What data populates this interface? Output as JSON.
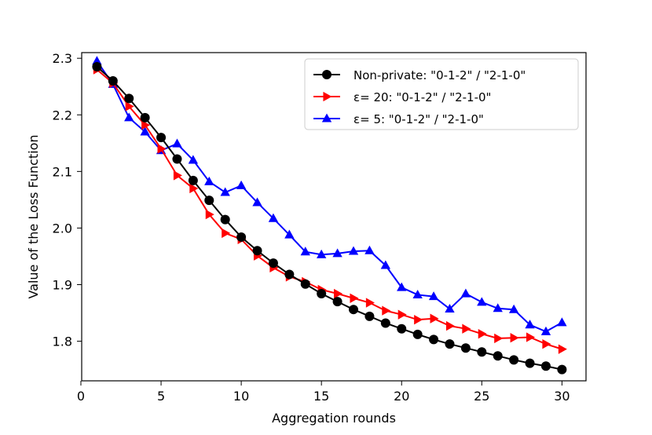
{
  "chart_data": {
    "type": "line",
    "title": "",
    "xlabel": "Aggregation rounds",
    "ylabel": "Value of the Loss Function",
    "xlim": [
      0.05,
      31.5
    ],
    "ylim": [
      1.73,
      2.31
    ],
    "xticks": [
      0,
      5,
      10,
      15,
      20,
      25,
      30
    ],
    "yticks": [
      1.8,
      1.9,
      2.0,
      2.1,
      2.2,
      2.3
    ],
    "ytick_labels": [
      "1.8",
      "1.9",
      "2.0",
      "2.1",
      "2.2",
      "2.3"
    ],
    "grid": false,
    "legend_position": "top-right",
    "x": [
      1,
      2,
      3,
      4,
      5,
      6,
      7,
      8,
      9,
      10,
      11,
      12,
      13,
      14,
      15,
      16,
      17,
      18,
      19,
      20,
      21,
      22,
      23,
      24,
      25,
      26,
      27,
      28,
      29,
      30
    ],
    "series": [
      {
        "name": "Non-private: \"0-1-2\" / \"2-1-0\"",
        "color": "#000000",
        "marker": "circle",
        "values": [
          2.285,
          2.26,
          2.229,
          2.195,
          2.16,
          2.122,
          2.084,
          2.049,
          2.015,
          1.984,
          1.96,
          1.938,
          1.918,
          1.901,
          1.884,
          1.87,
          1.856,
          1.844,
          1.832,
          1.822,
          1.812,
          1.803,
          1.795,
          1.788,
          1.781,
          1.774,
          1.767,
          1.761,
          1.756,
          1.75
        ]
      },
      {
        "name": "ε= 20: \"0-1-2\" / \"2-1-0\"",
        "color": "#ff0000",
        "marker": "triangle-right",
        "values": [
          2.28,
          2.256,
          2.215,
          2.182,
          2.14,
          2.093,
          2.07,
          2.024,
          1.991,
          1.98,
          1.951,
          1.93,
          1.914,
          1.905,
          1.891,
          1.884,
          1.876,
          1.868,
          1.854,
          1.847,
          1.838,
          1.84,
          1.827,
          1.822,
          1.813,
          1.805,
          1.806,
          1.807,
          1.795,
          1.786
        ]
      },
      {
        "name": "ε= 5: \"0-1-2\" / \"2-1-0\"",
        "color": "#0000ff",
        "marker": "triangle-up",
        "values": [
          2.295,
          2.254,
          2.195,
          2.17,
          2.137,
          2.149,
          2.12,
          2.082,
          2.063,
          2.075,
          2.045,
          2.017,
          1.988,
          1.958,
          1.953,
          1.955,
          1.959,
          1.96,
          1.934,
          1.895,
          1.882,
          1.879,
          1.857,
          1.884,
          1.869,
          1.858,
          1.856,
          1.829,
          1.817,
          1.833
        ]
      }
    ]
  }
}
